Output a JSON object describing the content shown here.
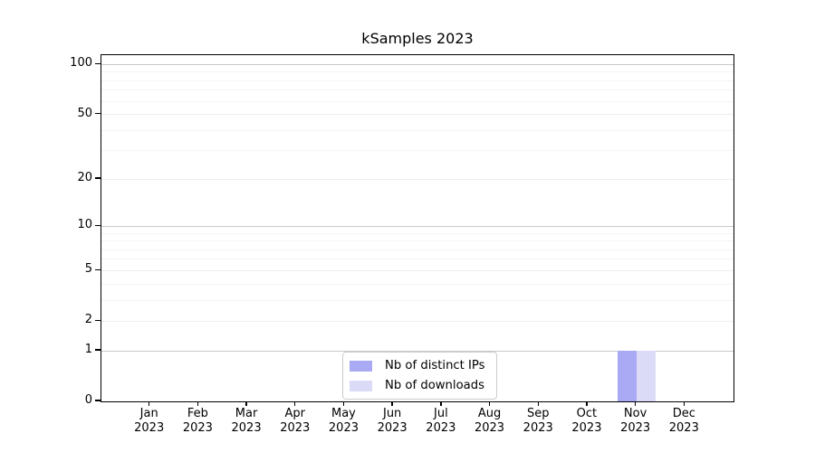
{
  "chart_data": {
    "type": "bar",
    "title": "kSamples 2023",
    "categories": [
      "Jan 2023",
      "Feb 2023",
      "Mar 2023",
      "Apr 2023",
      "May 2023",
      "Jun 2023",
      "Jul 2023",
      "Aug 2023",
      "Sep 2023",
      "Oct 2023",
      "Nov 2023",
      "Dec 2023"
    ],
    "series": [
      {
        "name": "Nb of distinct IPs",
        "color": "#a9a9f4",
        "values": [
          0,
          0,
          0,
          0,
          0,
          0,
          0,
          0,
          0,
          0,
          1,
          0
        ]
      },
      {
        "name": "Nb of downloads",
        "color": "#dbdbf8",
        "values": [
          0,
          0,
          0,
          0,
          0,
          0,
          0,
          0,
          0,
          0,
          1,
          0
        ]
      }
    ],
    "x_axis": {
      "tick_labels": [
        [
          "Jan",
          "2023"
        ],
        [
          "Feb",
          "2023"
        ],
        [
          "Mar",
          "2023"
        ],
        [
          "Apr",
          "2023"
        ],
        [
          "May",
          "2023"
        ],
        [
          "Jun",
          "2023"
        ],
        [
          "Jul",
          "2023"
        ],
        [
          "Aug",
          "2023"
        ],
        [
          "Sep",
          "2023"
        ],
        [
          "Oct",
          "2023"
        ],
        [
          "Nov",
          "2023"
        ],
        [
          "Dec",
          "2023"
        ]
      ]
    },
    "y_axis": {
      "tick_values": [
        0,
        1,
        2,
        5,
        10,
        20,
        50,
        100
      ],
      "tick_labels": [
        "0",
        "1",
        "2",
        "5",
        "10",
        "20",
        "50",
        "100"
      ],
      "scale": "log1p",
      "max": 100,
      "headroom_fraction": 0.973,
      "minor_gridlines": [
        3,
        4,
        6,
        7,
        8,
        9,
        30,
        40,
        60,
        70,
        80,
        90
      ],
      "decade_gridlines": [
        1,
        10,
        100
      ]
    },
    "legend": {
      "position": "bottom-center",
      "entries": [
        "Nb of distinct IPs",
        "Nb of downloads"
      ]
    },
    "colors": {
      "grid_major": "#c9c9c9",
      "grid_mid": "#ededed",
      "grid_minor": "#f4f4f4",
      "spine": "#000000"
    },
    "grid": true,
    "ylim": [
      0,
      115
    ]
  }
}
